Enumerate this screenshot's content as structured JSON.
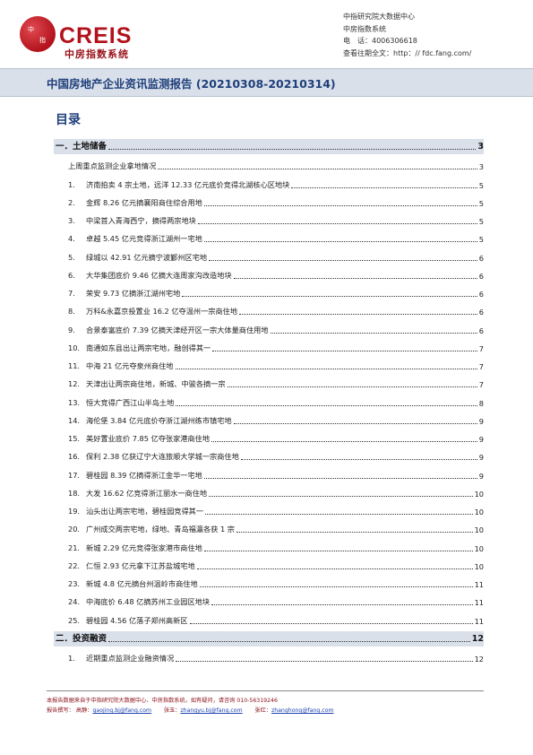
{
  "header": {
    "logo_mark": "CREIS",
    "logo_sub": "中房指数系统",
    "contact": [
      "中指研究院大数据中心",
      "中房指数系统",
      "电　话：4006306618",
      "查看往期全文：http：// fdc.fang.com/"
    ]
  },
  "report_title": "中国房地产企业资讯监测报告 (20210308-20210314)",
  "toc_heading": "目录",
  "sections": [
    {
      "label": "一．土地储备",
      "page": "3",
      "sub": {
        "label": "上周重点监测企业拿地情况",
        "page": "3"
      },
      "items": [
        {
          "num": "1.",
          "text": "济南拍卖 4 宗土地，远洋 12.33 亿元底价竞得北湖核心区地块",
          "page": "5"
        },
        {
          "num": "2.",
          "text": "金辉 8.26 亿元摘襄阳商住综合用地",
          "page": "5"
        },
        {
          "num": "3.",
          "text": "中梁首入青海西宁，摘得两宗地块",
          "page": "5"
        },
        {
          "num": "4.",
          "text": "卓越 5.45 亿元竞得浙江湖州一宅地",
          "page": "5"
        },
        {
          "num": "5.",
          "text": "绿城以 42.91 亿元摘宁波鄞州区宅地",
          "page": "6"
        },
        {
          "num": "6.",
          "text": "大华集团底价 9.46 亿摘大连周家沟改造地块",
          "page": "6"
        },
        {
          "num": "7.",
          "text": "荣安 9.73 亿摘浙江湖州宅地",
          "page": "6"
        },
        {
          "num": "8.",
          "text": "万科&永嘉京投置业 16.2 亿夺温州一宗商住地",
          "page": "6"
        },
        {
          "num": "9.",
          "text": "合景泰富底价 7.39 亿摘天津经开区一宗大体量商住用地",
          "page": "6"
        },
        {
          "num": "10.",
          "text": "南通如东县出让两宗宅地，融创得其一",
          "page": "7"
        },
        {
          "num": "11.",
          "text": "中海 21 亿元夺泉州商住地",
          "page": "7"
        },
        {
          "num": "12.",
          "text": "天津出让两宗商住地，新城、中骏各摘一宗",
          "page": "7"
        },
        {
          "num": "13.",
          "text": "恒大竞得广西江山半岛土地",
          "page": "8"
        },
        {
          "num": "14.",
          "text": "海伦堡 3.84 亿元底价夺浙江湖州练市镇宅地",
          "page": "9"
        },
        {
          "num": "15.",
          "text": "美好置业底价 7.85 亿夺张家港商住地",
          "page": "9"
        },
        {
          "num": "16.",
          "text": "保利 2.38 亿获辽宁大连旅顺大学城一宗商住地",
          "page": "9"
        },
        {
          "num": "17.",
          "text": "碧桂园 8.39 亿摘得浙江金华一宅地",
          "page": "9"
        },
        {
          "num": "18.",
          "text": "大发 16.62 亿竞得浙江丽水一商住地",
          "page": "10"
        },
        {
          "num": "19.",
          "text": "汕头出让两宗宅地，碧桂园竞得其一",
          "page": "10"
        },
        {
          "num": "20.",
          "text": "广州成交两宗宅地，绿地、青岛福瀛各获 1 宗",
          "page": "10"
        },
        {
          "num": "21.",
          "text": "新城 2.29 亿元竞得张家港市商住地",
          "page": "10"
        },
        {
          "num": "22.",
          "text": "仁恒 2.93 亿元拿下江苏盐城宅地",
          "page": "10"
        },
        {
          "num": "23.",
          "text": "新城 4.8 亿元摘台州温岭市商住地",
          "page": "11"
        },
        {
          "num": "24.",
          "text": "中海底价 6.48 亿摘苏州工业园区地块",
          "page": "11"
        },
        {
          "num": "25.",
          "text": "碧桂园 4.56 亿落子郑州高新区",
          "page": "11"
        }
      ]
    },
    {
      "label": "二．投资融资",
      "page": "12",
      "items": [
        {
          "num": "1.",
          "text": "近期重点监测企业融资情况",
          "page": "12"
        }
      ]
    }
  ],
  "footer": {
    "line1": "本报告数据来自于中指研究院大数据中心、中房指数系统，如有疑问，请咨询 010-56319246",
    "line2_prefix": "报告撰写：",
    "authors": [
      {
        "name": "高静：",
        "email": "gaojing.bj@fang.com"
      },
      {
        "name": "张玉：",
        "email": "zhangyu.bj@fang.com"
      },
      {
        "name": "张红：",
        "email": "zhanghong@fang.com"
      }
    ]
  }
}
